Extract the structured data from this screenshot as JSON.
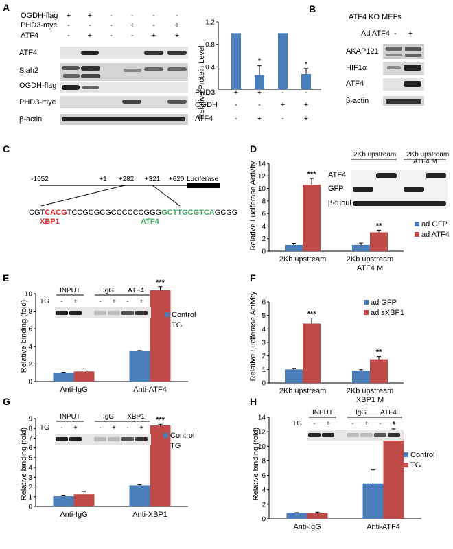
{
  "colors": {
    "blue": "#4a7ebb",
    "red": "#be4b48",
    "green": "#3aaa5a",
    "seq_red": "#e0201e",
    "axis": "#000000",
    "blot_bg": "#d8d8d8",
    "band": "#222222"
  },
  "panels": {
    "A": {
      "label": "A",
      "treatment_rows": [
        {
          "name": "OGDH-flag",
          "signs": [
            "+",
            "+",
            "-",
            "-",
            "-",
            "-"
          ]
        },
        {
          "name": "PHD3-myc",
          "signs": [
            "-",
            "-",
            "-",
            "+",
            "-",
            "+"
          ]
        },
        {
          "name": "ATF4",
          "signs": [
            "-",
            "+",
            "-",
            "-",
            "+",
            "+"
          ]
        }
      ],
      "blot_labels": [
        "ATF4",
        "Siah2",
        "OGDH-flag",
        "PHD3-myc",
        "β-actin"
      ],
      "bar_treatments": [
        {
          "name": "PHD3",
          "signs": [
            "+",
            "+",
            "-",
            "-"
          ]
        },
        {
          "name": "OGDH",
          "signs": [
            "-",
            "-",
            "+",
            "+"
          ]
        },
        {
          "name": "ATF4",
          "signs": [
            "-",
            "+",
            "-",
            "+"
          ]
        }
      ]
    },
    "B": {
      "label": "B",
      "title": "ATF4 KO MEFs",
      "treatment": {
        "name": "Ad ATF4",
        "signs": [
          "-",
          "+"
        ]
      },
      "blot_labels": [
        "AKAP121",
        "HIF1α",
        "ATF4",
        "β-actin"
      ]
    },
    "C": {
      "label": "C",
      "positions": [
        "-1652",
        "+1",
        "+282",
        "+321",
        "+620"
      ],
      "reporter": "Luciferase",
      "seq_prefix": "CGT",
      "seq_xbp1": "CACG",
      "seq_middle": "TCCGCGCGCCCCCCGGG",
      "seq_atf4": "GCTTGCGTCA",
      "seq_suffix": "GCGG",
      "xbp1_label": "XBP1",
      "atf4_label": "ATF4"
    },
    "D": {
      "label": "D",
      "blot_headers": [
        "2Kb upstream",
        "2Kb upstream",
        "ATF4 M"
      ],
      "blot_labels": [
        "ATF4",
        "GFP",
        "β-tubulin"
      ]
    },
    "E": {
      "label": "E",
      "blot_groups": [
        "INPUT",
        "IgG",
        "ATF4"
      ],
      "tg_label": "TG",
      "tg_signs": [
        "-",
        "+",
        "-",
        "+",
        "-",
        "+"
      ]
    },
    "F": {
      "label": "F"
    },
    "G": {
      "label": "G",
      "blot_groups": [
        "INPUT",
        "IgG",
        "XBP1"
      ],
      "tg_label": "TG",
      "tg_signs": [
        "-",
        "+",
        "-",
        "+",
        "-",
        "+"
      ]
    },
    "H": {
      "label": "H",
      "blot_groups": [
        "INPUT",
        "IgG",
        "ATF4"
      ],
      "tg_label": "TG",
      "tg_signs": [
        "-",
        "+",
        "-",
        "+",
        "-",
        "+"
      ]
    }
  },
  "chart_data": [
    {
      "id": "A",
      "type": "bar",
      "ylabel": "Relative Protein Level",
      "ylim": [
        0,
        1.2
      ],
      "yticks": [
        "0.4",
        "0.8",
        "1.2"
      ],
      "values": [
        1.0,
        0.25,
        1.0,
        0.27
      ],
      "errors": [
        0,
        0.17,
        0,
        0.1
      ],
      "significance": [
        "",
        "*",
        "",
        "*"
      ]
    },
    {
      "id": "D",
      "type": "bar",
      "ylabel": "Relative Luciferase Activity",
      "ylim": [
        0,
        14
      ],
      "yticks": [
        "0",
        "2",
        "4",
        "6",
        "8",
        "10",
        "12",
        "14"
      ],
      "categories": [
        "2Kb upstream",
        "2Kb upstream ATF4 M"
      ],
      "series": [
        {
          "name": "ad GFP",
          "values": [
            1.0,
            1.0
          ],
          "errors": [
            0.25,
            0.3
          ]
        },
        {
          "name": "ad ATF4",
          "values": [
            10.6,
            3.0
          ],
          "errors": [
            1.0,
            0.35
          ]
        }
      ],
      "significance": [
        "***",
        "**"
      ],
      "legend": "right"
    },
    {
      "id": "E",
      "type": "bar",
      "ylabel": "Relative binding (fold)",
      "ylim": [
        0,
        10
      ],
      "yticks": [
        "0",
        "2",
        "4",
        "6",
        "8",
        "10"
      ],
      "categories": [
        "Anti-IgG",
        "Anti-ATF4"
      ],
      "series": [
        {
          "name": "Control",
          "values": [
            1.0,
            3.45
          ],
          "errors": [
            0.05,
            0.08
          ]
        },
        {
          "name": "TG",
          "values": [
            1.15,
            10.4
          ],
          "errors": [
            0.3,
            0.4
          ]
        }
      ],
      "significance": [
        "",
        "***"
      ],
      "legend": "right"
    },
    {
      "id": "F",
      "type": "bar",
      "ylabel": "Relative Luciferase Activity",
      "ylim": [
        0,
        6
      ],
      "yticks": [
        "0",
        "1",
        "2",
        "3",
        "4",
        "5",
        "6"
      ],
      "categories": [
        "2Kb upstream",
        "2Kb upstream XBP1 M"
      ],
      "series": [
        {
          "name": "ad GFP",
          "values": [
            1.0,
            0.9
          ],
          "errors": [
            0.08,
            0.08
          ]
        },
        {
          "name": "ad sXBP1",
          "values": [
            4.4,
            1.75
          ],
          "errors": [
            0.4,
            0.2
          ]
        }
      ],
      "significance": [
        "***",
        "**"
      ],
      "legend": "top-right"
    },
    {
      "id": "G",
      "type": "bar",
      "ylabel": "Relative binding (fold)",
      "ylim": [
        0,
        9
      ],
      "yticks": [
        "0",
        "1",
        "2",
        "3",
        "4",
        "5",
        "6",
        "7",
        "8",
        "9"
      ],
      "categories": [
        "Anti-IgG",
        "Anti-XBP1"
      ],
      "series": [
        {
          "name": "Control",
          "values": [
            1.05,
            2.15
          ],
          "errors": [
            0.05,
            0.07
          ]
        },
        {
          "name": "TG",
          "values": [
            1.25,
            8.3
          ],
          "errors": [
            0.3,
            0.12
          ]
        }
      ],
      "significance": [
        "",
        "***"
      ],
      "legend": "right"
    },
    {
      "id": "H",
      "type": "bar",
      "ylabel": "Relative binding (fold)",
      "ylim": [
        0,
        14
      ],
      "yticks": [
        "0",
        "2",
        "4",
        "6",
        "8",
        "10",
        "12",
        "14"
      ],
      "categories": [
        "Anti-IgG",
        "Anti-ATF4"
      ],
      "series": [
        {
          "name": "Control",
          "values": [
            0.8,
            4.85
          ],
          "errors": [
            0.05,
            1.9
          ]
        },
        {
          "name": "TG",
          "values": [
            0.8,
            11.8
          ],
          "errors": [
            0.12,
            0.6
          ]
        }
      ],
      "significance": [
        "",
        "*"
      ],
      "legend": "right"
    }
  ]
}
